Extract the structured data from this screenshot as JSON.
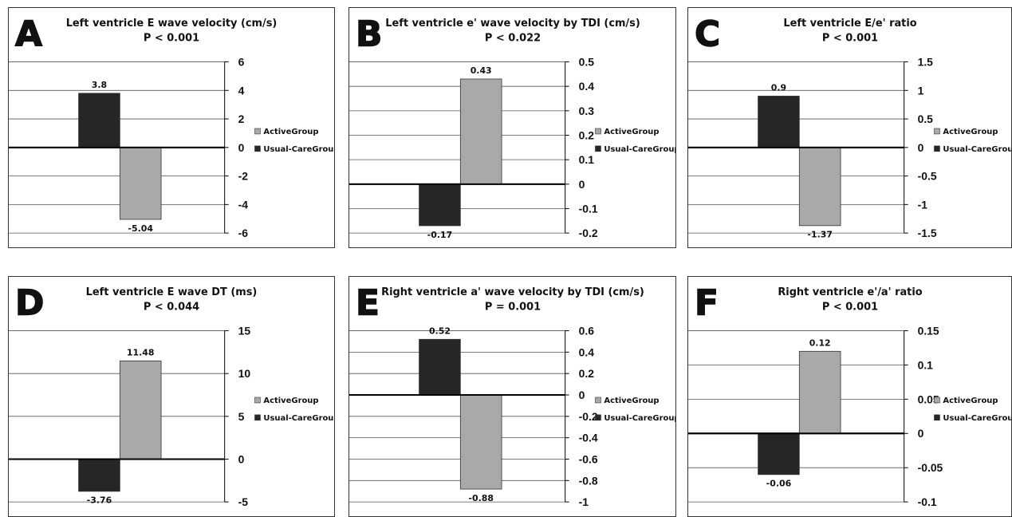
{
  "chart_data": [
    {
      "type": "bar",
      "panel_letter": "A",
      "title": "Left ventricle E wave velocity (cm/s)",
      "subtitle": "P < 0.001",
      "series": [
        {
          "name": "ActiveGroup",
          "values": [
            -5.04
          ],
          "color": "#a9a9a9"
        },
        {
          "name": "Usual-CareGroup",
          "values": [
            3.8
          ],
          "color": "#262626"
        }
      ],
      "ylim": [
        -6,
        6
      ],
      "yticks": [
        "6",
        "4",
        "2",
        "0",
        "-2",
        "-4",
        "-6"
      ],
      "ytick_values": [
        6,
        4,
        2,
        0,
        -2,
        -4,
        -6
      ],
      "axis_position": "right",
      "grid": true,
      "legend": "right"
    },
    {
      "type": "bar",
      "panel_letter": "B",
      "title": "Left ventricle e' wave velocity by TDI (cm/s)",
      "subtitle": "P < 0.022",
      "series": [
        {
          "name": "ActiveGroup",
          "values": [
            0.43
          ],
          "color": "#a9a9a9"
        },
        {
          "name": "Usual-CareGroup",
          "values": [
            -0.17
          ],
          "color": "#262626"
        }
      ],
      "ylim": [
        -0.2,
        0.5
      ],
      "yticks": [
        "0.5",
        "0.4",
        "0.3",
        "0.2",
        "0.1",
        "0",
        "-0.1",
        "-0.2"
      ],
      "ytick_values": [
        0.5,
        0.4,
        0.3,
        0.2,
        0.1,
        0,
        -0.1,
        -0.2
      ],
      "axis_position": "right",
      "grid": true,
      "legend": "right"
    },
    {
      "type": "bar",
      "panel_letter": "C",
      "title": "Left ventricle E/e' ratio",
      "subtitle": "P < 0.001",
      "series": [
        {
          "name": "ActiveGroup",
          "values": [
            -1.37
          ],
          "color": "#a9a9a9"
        },
        {
          "name": "Usual-CareGroup",
          "values": [
            0.9
          ],
          "color": "#262626"
        }
      ],
      "ylim": [
        -1.5,
        1.5
      ],
      "yticks": [
        "1.5",
        "1",
        "0.5",
        "0",
        "-0.5",
        "-1",
        "-1.5"
      ],
      "ytick_values": [
        1.5,
        1,
        0.5,
        0,
        -0.5,
        -1,
        -1.5
      ],
      "axis_position": "right",
      "grid": true,
      "legend": "right"
    },
    {
      "type": "bar",
      "panel_letter": "D",
      "title": "Left ventricle E wave DT (ms)",
      "subtitle": "P < 0.044",
      "series": [
        {
          "name": "ActiveGroup",
          "values": [
            11.48
          ],
          "color": "#a9a9a9"
        },
        {
          "name": "Usual-CareGroup",
          "values": [
            -3.76
          ],
          "color": "#262626"
        }
      ],
      "ylim": [
        -5,
        15
      ],
      "yticks": [
        "15",
        "10",
        "5",
        "0",
        "-5"
      ],
      "ytick_values": [
        15,
        10,
        5,
        0,
        -5
      ],
      "axis_position": "right",
      "grid": true,
      "legend": "right"
    },
    {
      "type": "bar",
      "panel_letter": "E",
      "title": "Right ventricle a' wave velocity by TDI (cm/s)",
      "subtitle": "P = 0.001",
      "series": [
        {
          "name": "ActiveGroup",
          "values": [
            -0.88
          ],
          "color": "#a9a9a9"
        },
        {
          "name": "Usual-CareGroup",
          "values": [
            0.52
          ],
          "color": "#262626"
        }
      ],
      "ylim": [
        -1,
        0.6
      ],
      "yticks": [
        "0.6",
        "0.4",
        "0.2",
        "0",
        "-0.2",
        "-0.4",
        "-0.6",
        "-0.8",
        "-1"
      ],
      "ytick_values": [
        0.6,
        0.4,
        0.2,
        0,
        -0.2,
        -0.4,
        -0.6,
        -0.8,
        -1
      ],
      "axis_position": "right",
      "grid": true,
      "legend": "right"
    },
    {
      "type": "bar",
      "panel_letter": "F",
      "title": "Right ventricle e'/a' ratio",
      "subtitle": "P < 0.001",
      "series": [
        {
          "name": "ActiveGroup",
          "values": [
            0.12
          ],
          "color": "#a9a9a9"
        },
        {
          "name": "Usual-CareGroup",
          "values": [
            -0.06
          ],
          "color": "#262626"
        }
      ],
      "ylim": [
        -0.1,
        0.15
      ],
      "yticks": [
        "0.15",
        "0.1",
        "0.05",
        "0",
        "-0.05",
        "-0.1"
      ],
      "ytick_values": [
        0.15,
        0.1,
        0.05,
        0,
        -0.05,
        -0.1
      ],
      "axis_position": "right",
      "grid": true,
      "legend": "right"
    }
  ]
}
